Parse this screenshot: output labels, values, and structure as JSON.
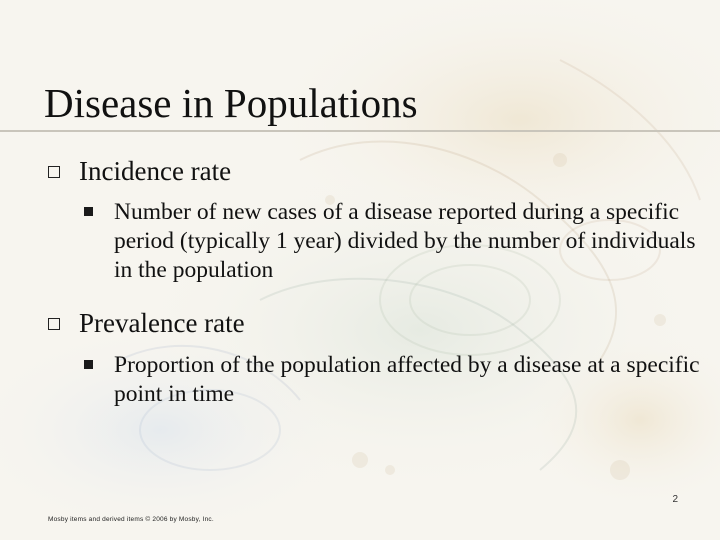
{
  "slide": {
    "title": "Disease in Populations",
    "page_number": "2",
    "footer": "Mosby items and derived items © 2006 by Mosby, Inc."
  },
  "bullets": [
    {
      "label": "Incidence rate",
      "sub": "Number of new cases of a disease reported during a specific period (typically 1 year) divided by the number of individuals in the population"
    },
    {
      "label": "Prevalence rate",
      "sub": "Proportion of the population affected by a disease at a specific point in time"
    }
  ],
  "colors": {
    "background": "#f7f5ef",
    "text": "#111111",
    "rule": "#c9c5bb"
  },
  "icons": {
    "level1_bullet": "hollow-square-icon",
    "level2_bullet": "filled-square-icon"
  }
}
